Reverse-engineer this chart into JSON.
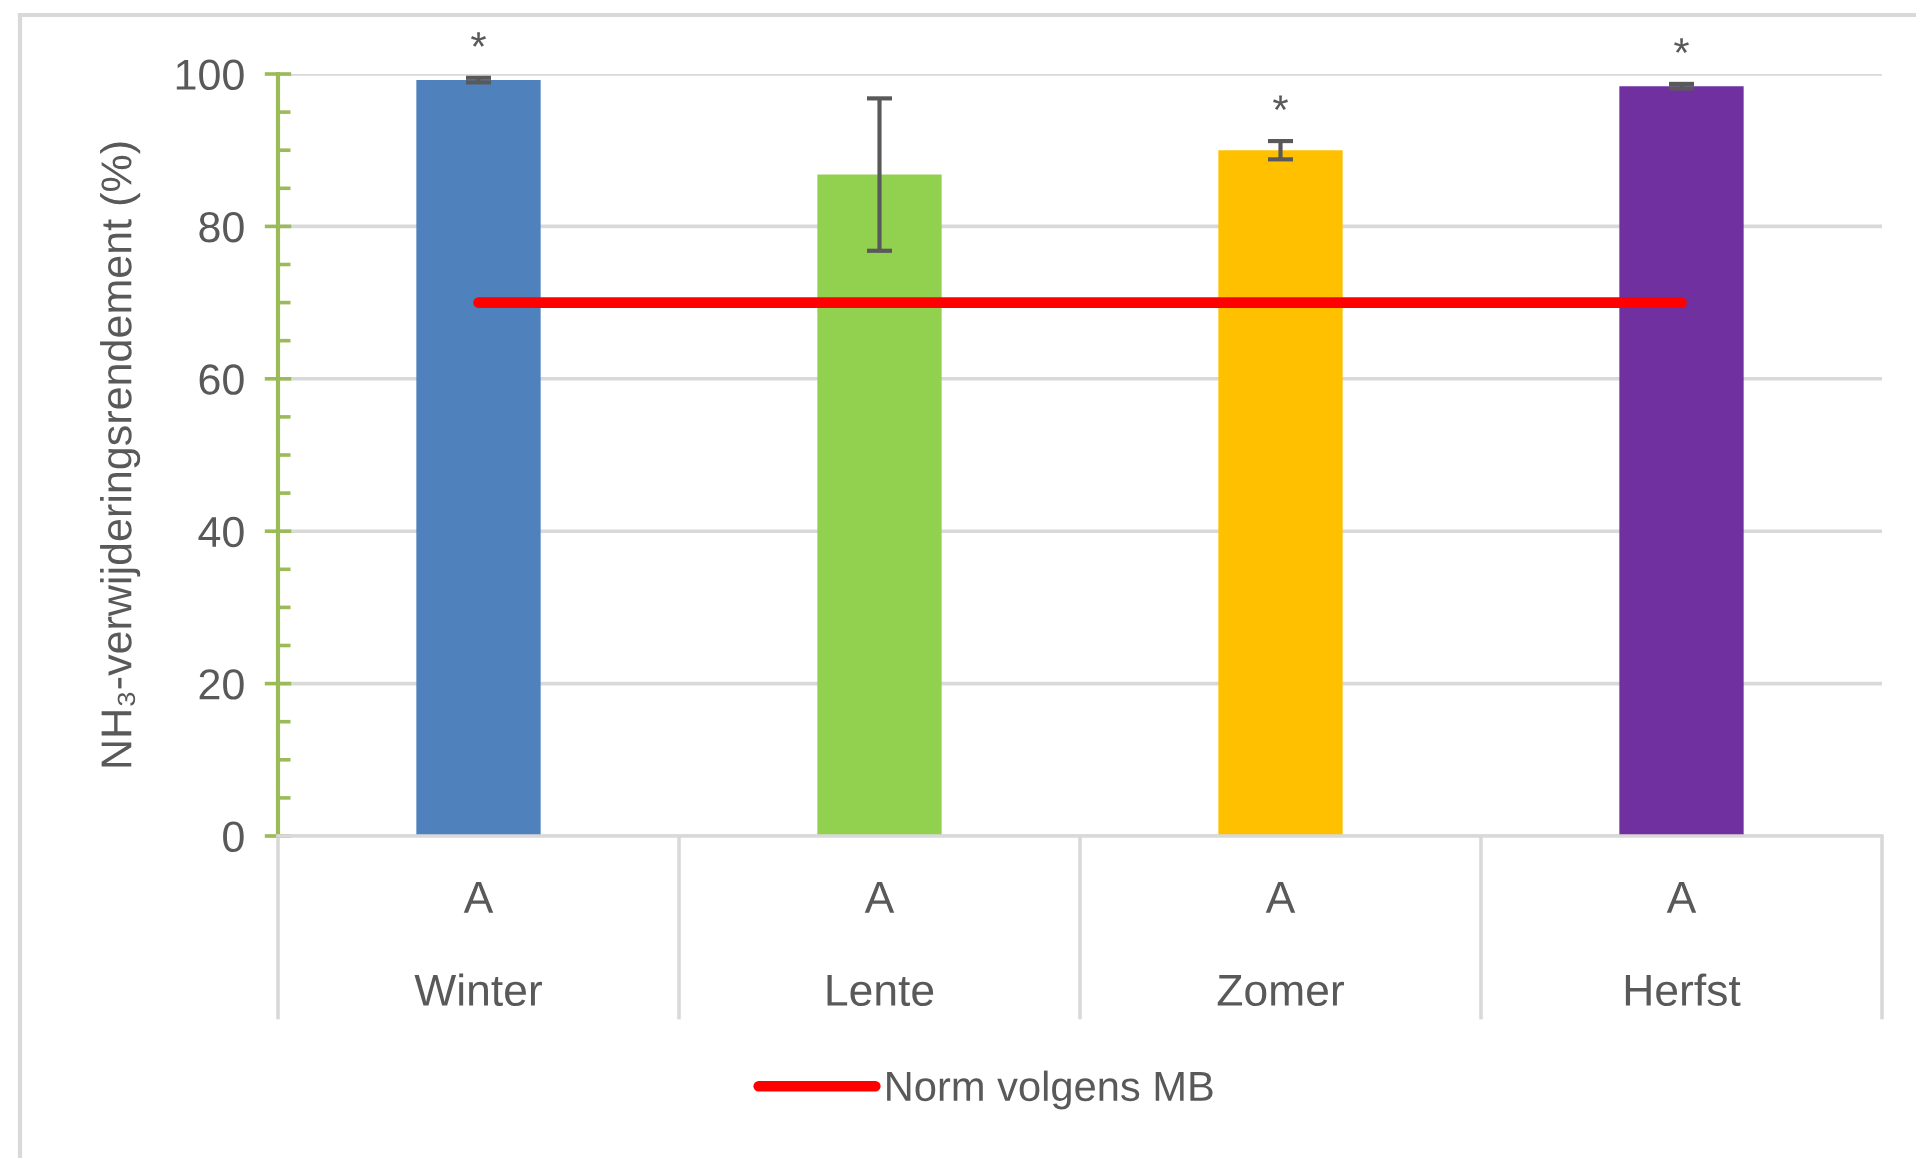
{
  "chart_data": {
    "type": "bar",
    "categories": [
      "A\nWinter",
      "A\nLente",
      "A\nZomer",
      "A\nHerfst"
    ],
    "ylabel": "NH₃-verwijderingsrendement (%)",
    "ylim": [
      0,
      100
    ],
    "yticks": [
      0,
      20,
      40,
      60,
      80,
      100
    ],
    "grid": "y",
    "legend": "bottom",
    "series": [
      {
        "colors": [
          "#4f81bd",
          "#92d050",
          "#ffc000",
          "#7030a0"
        ],
        "values": [
          99.2,
          86.8,
          90.0,
          98.4
        ],
        "errors": [
          0.3,
          10.0,
          1.2,
          0.3
        ],
        "value_labels": [
          "*",
          null,
          "*",
          "*"
        ]
      },
      {
        "type": "line",
        "name": "Norm volgens MB",
        "color": "#ff0000",
        "values": [
          70,
          70,
          70,
          70
        ]
      }
    ]
  }
}
